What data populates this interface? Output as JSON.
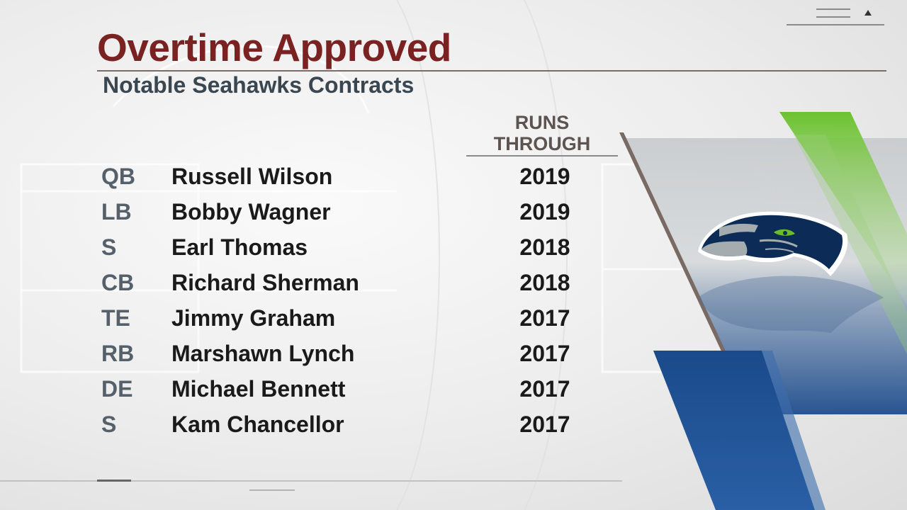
{
  "header": {
    "title": "Overtime Approved",
    "subtitle": "Notable Seahawks Contracts"
  },
  "table": {
    "column_header_line1": "RUNS",
    "column_header_line2": "THROUGH",
    "rows": [
      {
        "position": "QB",
        "name": "Russell Wilson",
        "year": "2019"
      },
      {
        "position": "LB",
        "name": "Bobby Wagner",
        "year": "2019"
      },
      {
        "position": "S",
        "name": "Earl Thomas",
        "year": "2018"
      },
      {
        "position": "CB",
        "name": "Richard Sherman",
        "year": "2018"
      },
      {
        "position": "TE",
        "name": "Jimmy Graham",
        "year": "2017"
      },
      {
        "position": "RB",
        "name": "Marshawn Lynch",
        "year": "2017"
      },
      {
        "position": "DE",
        "name": "Michael Bennett",
        "year": "2017"
      },
      {
        "position": "S",
        "name": "Kam Chancellor",
        "year": "2017"
      }
    ]
  },
  "graphic": {
    "logo": "seahawks-logo-icon",
    "colors": {
      "title": "#7a2222",
      "action_green": "#69be28",
      "navy": "#002244",
      "wolf_gray": "#a5acaf",
      "blue": "#1d4a8c"
    }
  }
}
